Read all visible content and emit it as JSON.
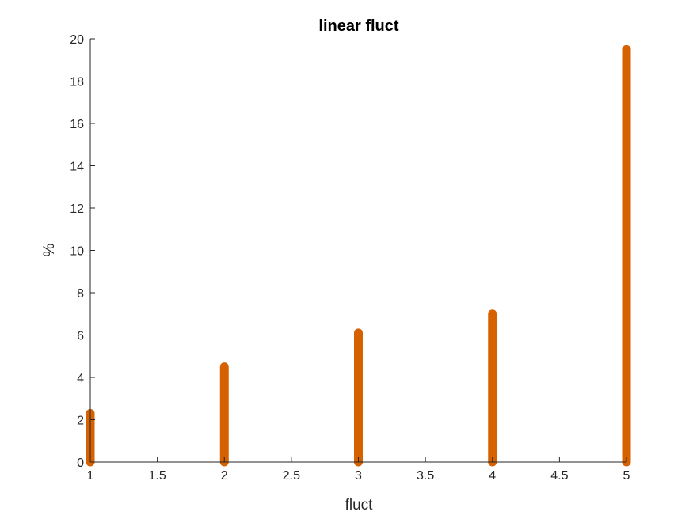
{
  "chart_data": {
    "type": "bar",
    "style": "stem",
    "title": "linear fluct",
    "xlabel": "fluct",
    "ylabel": "%",
    "xlim": [
      1,
      5
    ],
    "ylim": [
      0,
      20
    ],
    "xticks": [
      "1",
      "1.5",
      "2",
      "2.5",
      "3",
      "3.5",
      "4",
      "4.5",
      "5"
    ],
    "yticks": [
      "0",
      "2",
      "4",
      "6",
      "8",
      "10",
      "12",
      "14",
      "16",
      "18",
      "20"
    ],
    "x": [
      1,
      2,
      3,
      4,
      5
    ],
    "values": [
      2.3,
      4.5,
      6.1,
      7.0,
      19.5
    ],
    "grid": false,
    "colors": {
      "stem": "#D56100",
      "axis": "#262626"
    }
  }
}
